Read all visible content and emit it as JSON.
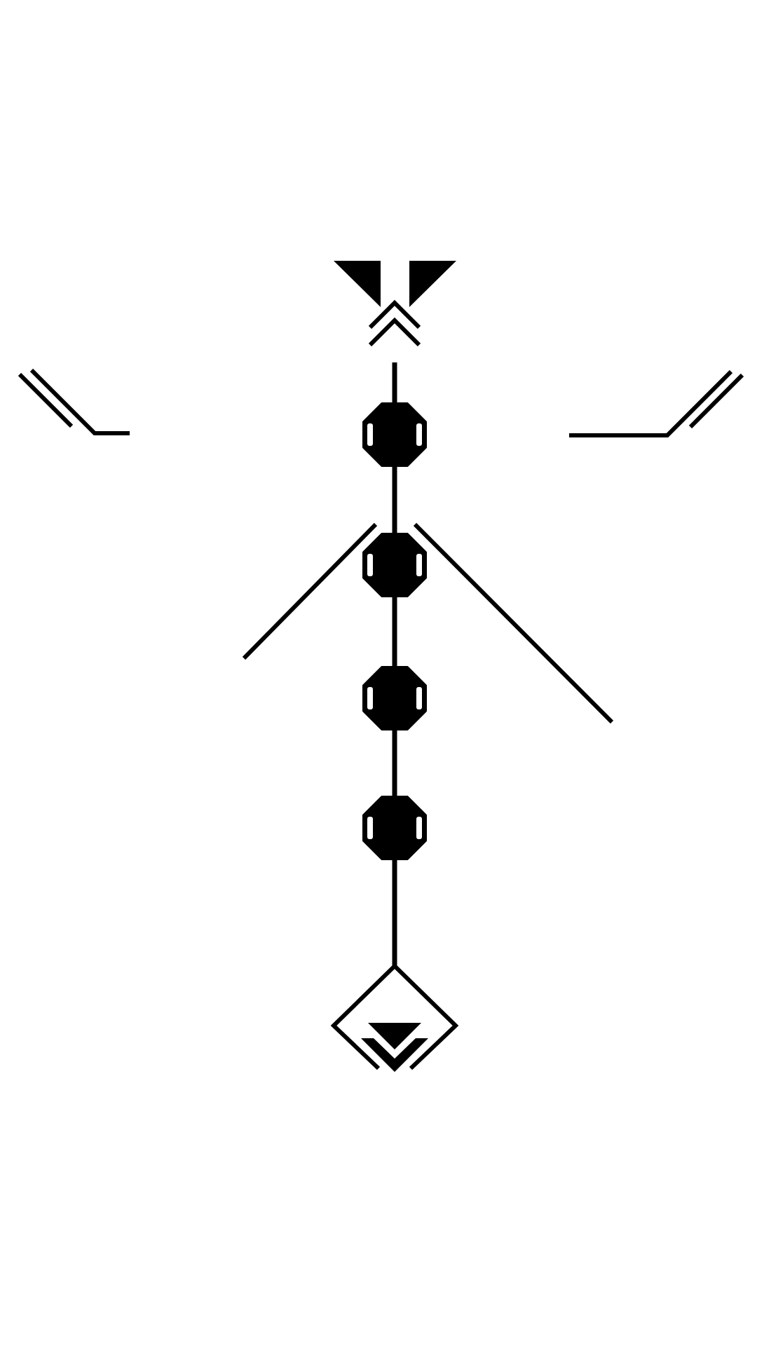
{
  "figure": {
    "background": "#ffffff",
    "ink": "#000000",
    "parts": {
      "top_mark": "two-triangles-over-double-chevron-glyph",
      "left_arm": "double-slash-with-foot-stroke",
      "right_arm": "double-slash-with-foot-stroke",
      "spine": "vertical-spine-line",
      "nodes": "octagon-node-with-two-slots",
      "shoulders": "diagonal-shoulder-strokes",
      "base_mark": "diamond-with-down-chevron-glyph"
    },
    "node_count": 4
  }
}
